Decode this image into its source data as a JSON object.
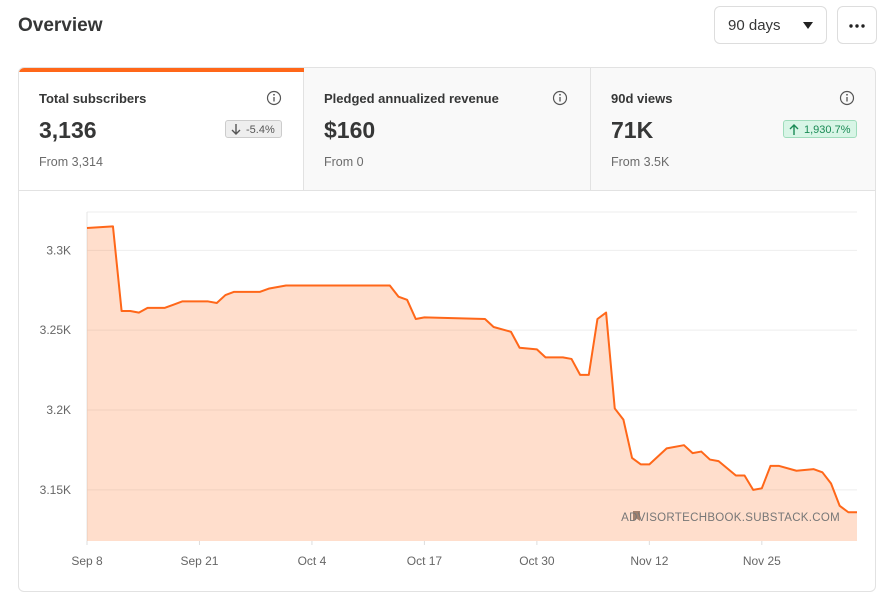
{
  "header": {
    "title": "Overview",
    "range": "90 days"
  },
  "stats": [
    {
      "label": "Total subscribers",
      "value": "3,136",
      "change": "-5.4%",
      "from": "From 3,314"
    },
    {
      "label": "Pledged annualized revenue",
      "value": "$160",
      "from": "From 0"
    },
    {
      "label": "90d views",
      "value": "71K",
      "change": "1,930.7%",
      "from": "From 3.5K"
    }
  ],
  "chart_data": {
    "type": "area",
    "x": [
      0,
      3,
      4,
      5,
      6,
      7,
      9,
      10,
      11,
      14,
      15,
      16,
      17,
      20,
      21,
      23,
      35,
      36,
      37,
      38,
      39,
      46,
      47,
      49,
      50,
      52,
      53,
      55,
      56,
      57,
      58,
      59,
      60,
      61,
      62,
      63,
      64,
      65,
      67,
      69,
      70,
      71,
      72,
      73,
      75,
      76,
      77,
      78,
      79,
      80,
      82,
      84,
      85,
      86,
      87,
      88,
      89
    ],
    "xlim": [
      0,
      89
    ],
    "xticks": [
      {
        "value": 0,
        "label": "Sep 8"
      },
      {
        "value": 13,
        "label": "Sep 21"
      },
      {
        "value": 26,
        "label": "Oct 4"
      },
      {
        "value": 39,
        "label": "Oct 17"
      },
      {
        "value": 52,
        "label": "Oct 30"
      },
      {
        "value": 65,
        "label": "Nov 12"
      },
      {
        "value": 78,
        "label": "Nov 25"
      }
    ],
    "series": [
      {
        "color": "#ff6719",
        "values": [
          3314,
          3315,
          3262,
          3262,
          3261,
          3264,
          3264,
          3266,
          3268,
          3268,
          3267,
          3272,
          3274,
          3274,
          3276,
          3278,
          3278,
          3271,
          3269,
          3257,
          3258,
          3257,
          3252,
          3249,
          3239,
          3238,
          3233,
          3233,
          3232,
          3222,
          3222,
          3257,
          3261,
          3201,
          3194,
          3170,
          3166,
          3166,
          3176,
          3178,
          3173,
          3174,
          3169,
          3168,
          3159,
          3159,
          3150,
          3151,
          3165,
          3165,
          3162,
          3163,
          3161,
          3154,
          3140,
          3136,
          3136
        ]
      }
    ],
    "ylim": [
      3118,
      3324
    ],
    "yticks": [
      {
        "value": 3150,
        "label": "3.15K"
      },
      {
        "value": 3200,
        "label": "3.2K"
      },
      {
        "value": 3250,
        "label": "3.25K"
      },
      {
        "value": 3300,
        "label": "3.3K"
      }
    ],
    "grid": true,
    "watermark": "ADVISORTECHBOOK.SUBSTACK.COM"
  }
}
